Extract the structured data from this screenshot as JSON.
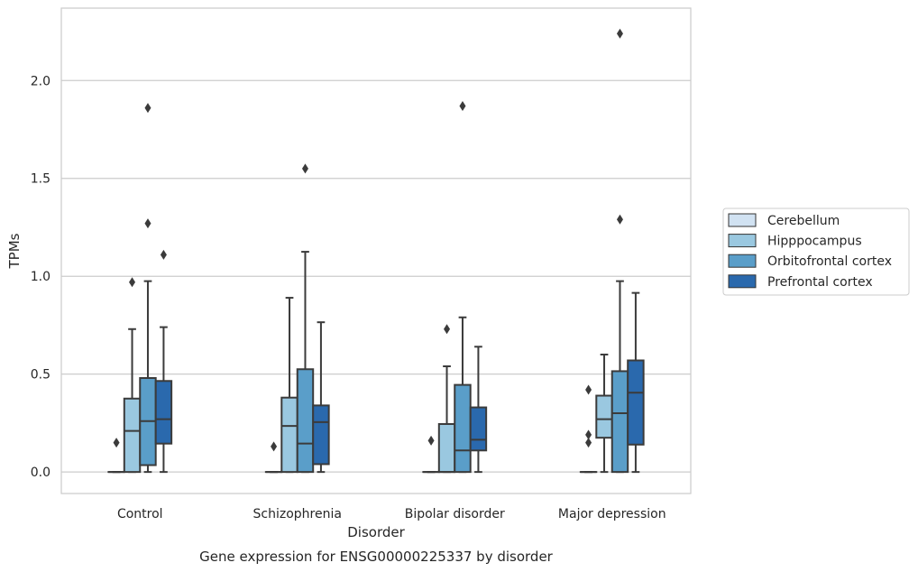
{
  "chart_data": {
    "type": "boxplot",
    "title": "Gene expression for ENSG00000225337 by disorder",
    "xlabel": "Disorder",
    "ylabel": "TPMs",
    "ylim": [
      -0.11,
      2.37
    ],
    "yticks": [
      0.0,
      0.5,
      1.0,
      1.5,
      2.0
    ],
    "yticklabels": [
      "0.0",
      "0.5",
      "1.0",
      "1.5",
      "2.0"
    ],
    "grid": "horizontal",
    "legend_position": "right",
    "categories": [
      "Control",
      "Schizophrenia",
      "Bipolar disorder",
      "Major depression"
    ],
    "series": [
      {
        "name": "Cerebellum",
        "color": "#d1e2f2",
        "boxes": [
          {
            "whislo": 0,
            "q1": 0,
            "med": 0,
            "q3": 0,
            "whishi": 0,
            "fliers": [
              0.15
            ]
          },
          {
            "whislo": 0,
            "q1": 0,
            "med": 0,
            "q3": 0,
            "whishi": 0,
            "fliers": [
              0.13
            ]
          },
          {
            "whislo": 0,
            "q1": 0,
            "med": 0,
            "q3": 0,
            "whishi": 0,
            "fliers": [
              0.16
            ]
          },
          {
            "whislo": 0,
            "q1": 0,
            "med": 0,
            "q3": 0,
            "whishi": 0,
            "fliers": [
              0.15,
              0.19,
              0.42
            ]
          }
        ]
      },
      {
        "name": "Hipppocampus",
        "color": "#9ac8e0",
        "boxes": [
          {
            "whislo": 0,
            "q1": 0,
            "med": 0.21,
            "q3": 0.375,
            "whishi": 0.73,
            "fliers": [
              0.97
            ]
          },
          {
            "whislo": 0,
            "q1": 0,
            "med": 0.235,
            "q3": 0.38,
            "whishi": 0.89,
            "fliers": []
          },
          {
            "whislo": 0,
            "q1": 0,
            "med": 0,
            "q3": 0.245,
            "whishi": 0.54,
            "fliers": [
              0.73
            ]
          },
          {
            "whislo": 0,
            "q1": 0.175,
            "med": 0.27,
            "q3": 0.39,
            "whishi": 0.6,
            "fliers": []
          }
        ]
      },
      {
        "name": "Orbitofrontal cortex",
        "color": "#5a9ec9",
        "boxes": [
          {
            "whislo": 0,
            "q1": 0.035,
            "med": 0.26,
            "q3": 0.48,
            "whishi": 0.975,
            "fliers": [
              1.27,
              1.86
            ]
          },
          {
            "whislo": 0,
            "q1": 0,
            "med": 0.145,
            "q3": 0.525,
            "whishi": 1.125,
            "fliers": [
              1.55
            ]
          },
          {
            "whislo": 0,
            "q1": 0,
            "med": 0.11,
            "q3": 0.445,
            "whishi": 0.79,
            "fliers": [
              1.87
            ]
          },
          {
            "whislo": 0,
            "q1": 0,
            "med": 0.3,
            "q3": 0.515,
            "whishi": 0.975,
            "fliers": [
              1.29,
              2.24
            ]
          }
        ]
      },
      {
        "name": "Prefrontal cortex",
        "color": "#2a69ad",
        "boxes": [
          {
            "whislo": 0,
            "q1": 0.145,
            "med": 0.27,
            "q3": 0.465,
            "whishi": 0.74,
            "fliers": [
              1.11
            ]
          },
          {
            "whislo": 0,
            "q1": 0.04,
            "med": 0.255,
            "q3": 0.34,
            "whishi": 0.765,
            "fliers": []
          },
          {
            "whislo": 0,
            "q1": 0.11,
            "med": 0.165,
            "q3": 0.33,
            "whishi": 0.64,
            "fliers": []
          },
          {
            "whislo": 0,
            "q1": 0.14,
            "med": 0.405,
            "q3": 0.57,
            "whishi": 0.915,
            "fliers": []
          }
        ]
      }
    ]
  }
}
